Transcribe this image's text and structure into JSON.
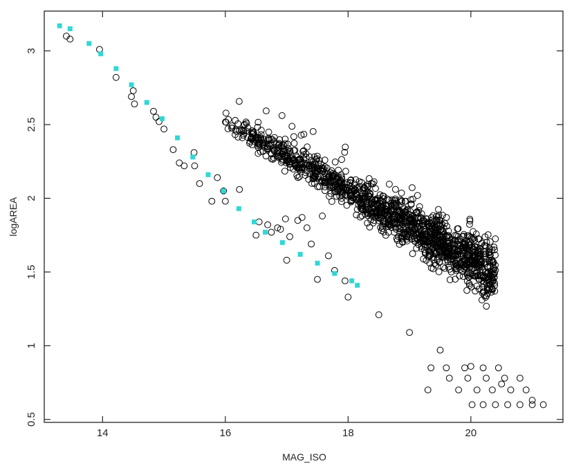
{
  "chart_data": {
    "type": "scatter",
    "title": "",
    "xlabel": "MAG_ISO",
    "ylabel": "logAREA",
    "xlim": [
      13.05,
      21.5
    ],
    "ylim": [
      0.48,
      3.27
    ],
    "x_ticks": [
      14,
      16,
      18,
      20
    ],
    "y_ticks": [
      0.5,
      1,
      1.5,
      2,
      2.5,
      3
    ],
    "x_tick_labels": [
      "14",
      "16",
      "18",
      "20"
    ],
    "y_tick_labels": [
      "0.5",
      "1",
      "1.5",
      "2",
      "2.5",
      "3"
    ],
    "grid": false,
    "legend": "none",
    "series": [
      {
        "marker": "square",
        "color": "#33d6d6",
        "x": [
          13.3,
          13.47,
          13.78,
          13.97,
          14.22,
          14.47,
          14.72,
          14.97,
          15.22,
          15.47,
          15.72,
          15.97,
          16.22,
          16.47,
          16.65,
          16.93,
          17.22,
          17.5,
          17.78,
          18.06,
          18.15
        ],
        "y": [
          3.17,
          3.15,
          3.05,
          2.98,
          2.88,
          2.77,
          2.65,
          2.54,
          2.41,
          2.28,
          2.16,
          2.05,
          1.93,
          1.84,
          1.77,
          1.7,
          1.62,
          1.56,
          1.49,
          1.44,
          1.41
        ]
      },
      {
        "marker": "circle-open",
        "color": "#000000",
        "x": [
          13.41,
          13.47,
          14.22,
          14.47,
          14.52,
          14.83,
          14.87,
          14.92,
          15.15,
          15.25,
          15.33,
          15.49,
          15.58,
          15.78,
          15.87,
          15.97,
          16.23,
          16.55,
          16.69,
          16.98,
          17.25,
          17.33,
          17.58,
          17.68,
          17.78,
          17.95,
          16.9,
          16.75,
          16.85,
          17.18,
          17.05,
          17.4
        ],
        "y": [
          3.1,
          3.08,
          2.82,
          2.69,
          2.64,
          2.59,
          2.55,
          2.52,
          2.33,
          2.24,
          2.22,
          2.31,
          2.1,
          1.98,
          2.14,
          2.05,
          2.06,
          1.84,
          1.82,
          1.86,
          1.87,
          1.8,
          1.88,
          1.61,
          1.51,
          1.44,
          1.79,
          1.77,
          1.8,
          1.85,
          1.74,
          1.69
        ]
      },
      {
        "marker": "circle-open",
        "color": "#000000",
        "x": [
          13.95,
          14.5,
          15.0,
          15.5,
          16.0,
          16.5,
          17.0,
          17.5,
          18.0,
          18.5,
          19.0,
          19.5,
          20.0,
          20.5,
          21.0
        ],
        "y": [
          3.01,
          2.73,
          2.47,
          2.22,
          1.98,
          1.75,
          1.58,
          1.45,
          1.33,
          1.21,
          1.09,
          0.97,
          0.86,
          0.74,
          0.63
        ]
      },
      {
        "marker": "circle-open",
        "color": "#000000",
        "x": [
          20.02,
          20.2,
          20.4,
          20.6,
          20.8,
          21.0,
          21.18,
          19.8,
          20.1,
          20.35,
          20.65,
          20.9,
          19.3,
          19.65,
          19.95,
          20.25,
          20.55,
          20.8,
          19.35,
          19.6,
          19.9,
          20.2,
          20.45
        ],
        "y": [
          0.6,
          0.6,
          0.6,
          0.6,
          0.6,
          0.6,
          0.6,
          0.7,
          0.7,
          0.7,
          0.7,
          0.7,
          0.7,
          0.78,
          0.78,
          0.78,
          0.78,
          0.78,
          0.85,
          0.85,
          0.85,
          0.85,
          0.85
        ]
      }
    ]
  }
}
